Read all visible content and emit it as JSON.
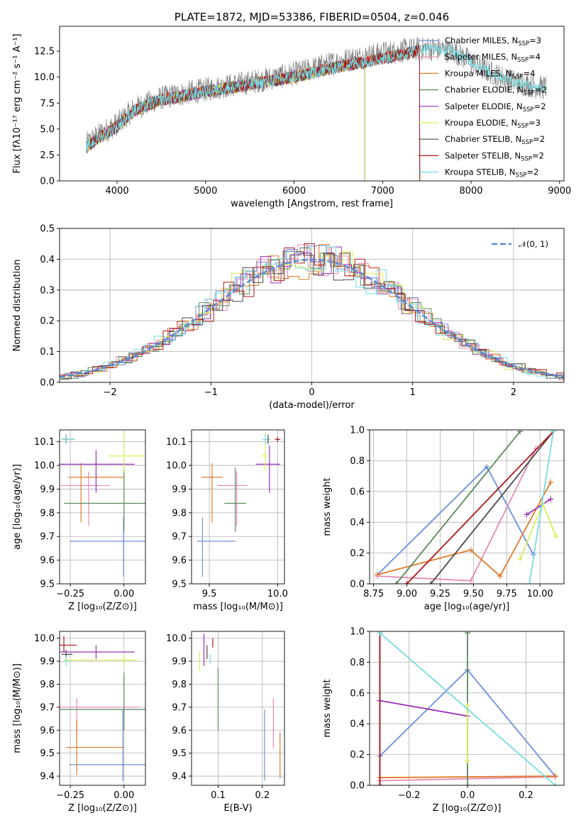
{
  "colors": {
    "Chabrier MILES": "#6b8fdc",
    "Salpeter MILES": "#e889b3",
    "Kroupa MILES": "#e07b2a",
    "Chabrier ELODIE": "#5a8a5a",
    "Salpeter ELODIE": "#9b30b8",
    "Kroupa ELODIE": "#d8ee55",
    "Chabrier STELIB": "#4a4a4a",
    "Salpeter STELIB": "#b01818",
    "Kroupa STELIB": "#76dbe0"
  },
  "chart_data": [
    {
      "id": "spectrum",
      "type": "line",
      "title": "PLATE=1872, MJD=53386, FIBERID=0504, z=0.046",
      "xlabel": "wavelength [Angstrom, rest frame]",
      "ylabel": "Flux [fλ10⁻¹⁷ erg cm⁻² s⁻¹ A⁻¹]",
      "xlim": [
        3350,
        9050
      ],
      "ylim": [
        0,
        14.9
      ],
      "xticks": [
        4000,
        5000,
        6000,
        7000,
        8000,
        9000
      ],
      "yticks": [
        0.0,
        2.5,
        5.0,
        7.5,
        10.0,
        12.5
      ],
      "grid": false,
      "legend_position": "right",
      "data_line_color": "#808080",
      "data_approx": [
        [
          3650,
          3.5
        ],
        [
          3800,
          4.5
        ],
        [
          4000,
          5.5
        ],
        [
          4200,
          7.0
        ],
        [
          4500,
          8.0
        ],
        [
          5000,
          8.8
        ],
        [
          5500,
          9.5
        ],
        [
          6000,
          10.3
        ],
        [
          6500,
          11.5
        ],
        [
          7000,
          12.3
        ],
        [
          7500,
          12.8
        ],
        [
          7800,
          12.5
        ],
        [
          8000,
          11.5
        ],
        [
          8200,
          10.5
        ],
        [
          8500,
          9.5
        ],
        [
          8800,
          9.0
        ]
      ],
      "model_approx": [
        [
          3650,
          3.2
        ],
        [
          3800,
          4.2
        ],
        [
          4000,
          5.2
        ],
        [
          4200,
          6.8
        ],
        [
          4500,
          7.8
        ],
        [
          5000,
          8.6
        ],
        [
          5500,
          9.3
        ],
        [
          6000,
          10.0
        ],
        [
          6500,
          11.0
        ],
        [
          7000,
          11.8
        ],
        [
          7400,
          12.5
        ]
      ],
      "legend": [
        {
          "label": "Chabrier MILES, N",
          "sub": "SSP",
          "val": "=3",
          "key": "Chabrier MILES"
        },
        {
          "label": "Salpeter MILES, N",
          "sub": "SSP",
          "val": "=4",
          "key": "Salpeter MILES"
        },
        {
          "label": "Kroupa MILES, N",
          "sub": "SSP",
          "val": "=4",
          "key": "Kroupa MILES"
        },
        {
          "label": "Chabrier ELODIE, N",
          "sub": "SSP",
          "val": "=2",
          "key": "Chabrier ELODIE"
        },
        {
          "label": "Salpeter ELODIE, N",
          "sub": "SSP",
          "val": "=2",
          "key": "Salpeter ELODIE"
        },
        {
          "label": "Kroupa ELODIE, N",
          "sub": "SSP",
          "val": "=3",
          "key": "Kroupa ELODIE"
        },
        {
          "label": "Chabrier STELIB, N",
          "sub": "SSP",
          "val": "=2",
          "key": "Chabrier STELIB"
        },
        {
          "label": "Salpeter STELIB, N",
          "sub": "SSP",
          "val": "=2",
          "key": "Salpeter STELIB"
        },
        {
          "label": "Kroupa STELIB, N",
          "sub": "SSP",
          "val": "=2",
          "key": "Kroupa STELIB"
        }
      ]
    },
    {
      "id": "residual-hist",
      "type": "line",
      "xlabel": "(data-model)/error",
      "ylabel": "Normed distribution",
      "xlim": [
        -2.5,
        2.5
      ],
      "ylim": [
        0,
        0.5
      ],
      "xticks": [
        -2,
        -1,
        0,
        1,
        2
      ],
      "yticks": [
        0.0,
        0.1,
        0.2,
        0.3,
        0.4,
        0.5
      ],
      "grid": true,
      "legend": "𝒩(0, 1)",
      "legend_position": "top-right",
      "normal_curve_color": "#5b8bd0"
    },
    {
      "id": "age-vs-z",
      "type": "scatter",
      "xlabel": "Z [log₁₀(Z/Z⊙)]",
      "ylabel": "age  [log₁₀(age/yr)]",
      "xlim": [
        -0.3,
        0.1
      ],
      "ylim": [
        9.5,
        10.15
      ],
      "xticks": [
        -0.25,
        0.0
      ],
      "yticks": [
        9.5,
        9.6,
        9.7,
        9.8,
        9.9,
        10.0,
        10.1
      ],
      "grid": true,
      "points": [
        {
          "key": "Chabrier MILES",
          "x": -0.002,
          "xerr": [
            0.25,
            0.14
          ],
          "y": 9.68,
          "yerr": [
            0.15,
            0.1
          ]
        },
        {
          "key": "Salpeter MILES",
          "x": -0.165,
          "xerr": [
            0.13,
            0.1
          ],
          "y": 9.915,
          "yerr": [
            0.17,
            0.06
          ]
        },
        {
          "key": "Kroupa MILES",
          "x": -0.2,
          "xerr": [
            0.06,
            0.2
          ],
          "y": 9.95,
          "yerr": [
            0.19,
            0.06
          ]
        },
        {
          "key": "Chabrier ELODIE",
          "x": 0.0,
          "xerr": [
            0.28,
            0.11
          ],
          "y": 9.84,
          "yerr": [
            0.12,
            0.15
          ]
        },
        {
          "key": "Salpeter ELODIE",
          "x": -0.13,
          "xerr": [
            0.18,
            0.18
          ],
          "y": 10.005,
          "yerr": [
            0.12,
            0.06
          ]
        },
        {
          "key": "Kroupa ELODIE",
          "x": 0.0,
          "xerr": [
            0.07,
            0.1
          ],
          "y": 10.04,
          "yerr": [
            0.07,
            0.1
          ]
        },
        {
          "key": "Chabrier STELIB",
          "x": -0.27,
          "xerr": [
            0.02,
            0.04
          ],
          "y": 10.11,
          "yerr": [
            0.02,
            0.02
          ]
        },
        {
          "key": "Salpeter STELIB",
          "x": -0.27,
          "xerr": [
            0.02,
            0.04
          ],
          "y": 10.11,
          "yerr": [
            0.02,
            0.02
          ]
        },
        {
          "key": "Kroupa STELIB",
          "x": -0.27,
          "xerr": [
            0.02,
            0.04
          ],
          "y": 10.11,
          "yerr": [
            0.02,
            0.02
          ]
        }
      ]
    },
    {
      "id": "age-vs-mass",
      "type": "scatter",
      "xlabel": "mass [log₁₀(M/M⊙)]",
      "ylabel": "",
      "xlim": [
        9.37,
        10.05
      ],
      "ylim": [
        9.5,
        10.15
      ],
      "xticks": [
        9.5,
        10.0
      ],
      "yticks": [
        9.5,
        9.6,
        9.7,
        9.8,
        9.9,
        10.0,
        10.1
      ],
      "grid": true,
      "points": [
        {
          "key": "Chabrier MILES",
          "x": 9.45,
          "xerr": [
            0.04,
            0.24
          ],
          "y": 9.68,
          "yerr": [
            0.15,
            0.1
          ]
        },
        {
          "key": "Salpeter MILES",
          "x": 9.7,
          "xerr": [
            0.14,
            0.08
          ],
          "y": 9.915,
          "yerr": [
            0.17,
            0.06
          ]
        },
        {
          "key": "Kroupa MILES",
          "x": 9.52,
          "xerr": [
            0.08,
            0.08
          ],
          "y": 9.95,
          "yerr": [
            0.19,
            0.06
          ]
        },
        {
          "key": "Chabrier ELODIE",
          "x": 9.69,
          "xerr": [
            0.08,
            0.08
          ],
          "y": 9.84,
          "yerr": [
            0.12,
            0.15
          ]
        },
        {
          "key": "Salpeter ELODIE",
          "x": 9.94,
          "xerr": [
            0.1,
            0.08
          ],
          "y": 10.005,
          "yerr": [
            0.12,
            0.08
          ]
        },
        {
          "key": "Kroupa ELODIE",
          "x": 9.91,
          "xerr": [
            0.03,
            0.02
          ],
          "y": 10.04,
          "yerr": [
            0.06,
            0.1
          ]
        },
        {
          "key": "Chabrier STELIB",
          "x": 9.93,
          "xerr": [
            0.01,
            0.01
          ],
          "y": 10.11,
          "yerr": [
            0.02,
            0.02
          ]
        },
        {
          "key": "Salpeter STELIB",
          "x": 10.0,
          "xerr": [
            0.02,
            0.02
          ],
          "y": 10.11,
          "yerr": [
            0.01,
            0.01
          ]
        },
        {
          "key": "Kroupa STELIB",
          "x": 9.91,
          "xerr": [
            0.02,
            0.02
          ],
          "y": 10.11,
          "yerr": [
            0.02,
            0.02
          ]
        }
      ]
    },
    {
      "id": "mass-weight-vs-age",
      "type": "line",
      "xlabel": "age  [log₁₀(age/yr)]",
      "ylabel": "mass weight",
      "xlim": [
        8.72,
        10.18
      ],
      "ylim": [
        0,
        1
      ],
      "xticks": [
        8.75,
        9.0,
        9.25,
        9.5,
        9.75,
        10.0
      ],
      "yticks": [
        0.0,
        0.2,
        0.4,
        0.6,
        0.8,
        1.0
      ],
      "grid": true,
      "series": [
        {
          "key": "Chabrier MILES",
          "x": [
            8.78,
            9.6,
            9.95
          ],
          "y": [
            0.06,
            0.76,
            0.19
          ]
        },
        {
          "key": "Salpeter MILES",
          "x": [
            8.78,
            9.48,
            9.97
          ],
          "y": [
            0.05,
            0.02,
            0.88
          ]
        },
        {
          "key": "Kroupa MILES",
          "x": [
            8.78,
            9.48,
            9.7,
            10.08
          ],
          "y": [
            0.06,
            0.22,
            0.05,
            0.66
          ]
        },
        {
          "key": "Chabrier ELODIE",
          "x": [
            8.92,
            9.85
          ],
          "y": [
            0.0,
            0.99
          ]
        },
        {
          "key": "Salpeter ELODIE",
          "x": [
            9.9,
            10.08
          ],
          "y": [
            0.45,
            0.55
          ]
        },
        {
          "key": "Kroupa ELODIE",
          "x": [
            9.85,
            10.02,
            10.12
          ],
          "y": [
            0.16,
            0.52,
            0.31
          ]
        },
        {
          "key": "Chabrier STELIB",
          "x": [
            9.18,
            10.1
          ],
          "y": [
            0.0,
            0.99
          ]
        },
        {
          "key": "Salpeter STELIB",
          "x": [
            9.0,
            10.1
          ],
          "y": [
            0.0,
            0.99
          ]
        },
        {
          "key": "Kroupa STELIB",
          "x": [
            9.92,
            10.1
          ],
          "y": [
            0.0,
            0.99
          ]
        }
      ]
    },
    {
      "id": "mass-vs-z",
      "type": "scatter",
      "xlabel": "Z [log₁₀(Z/Z⊙)]",
      "ylabel": "mass [log₁₀(M/M⊙)]",
      "xlim": [
        -0.3,
        0.1
      ],
      "ylim": [
        9.36,
        10.03
      ],
      "xticks": [
        -0.25,
        0.0
      ],
      "yticks": [
        9.4,
        9.5,
        9.6,
        9.7,
        9.8,
        9.9,
        10.0
      ],
      "grid": true,
      "points": [
        {
          "key": "Chabrier MILES",
          "x": -0.005,
          "xerr": [
            0.25,
            0.15
          ],
          "y": 9.45,
          "yerr": [
            0.07,
            0.24
          ]
        },
        {
          "key": "Salpeter MILES",
          "x": -0.22,
          "xerr": [
            0.09,
            0.29
          ],
          "y": 9.7,
          "yerr": [
            0.14,
            0.04
          ]
        },
        {
          "key": "Kroupa MILES",
          "x": -0.22,
          "xerr": [
            0.05,
            0.22
          ],
          "y": 9.525,
          "yerr": [
            0.12,
            0.12
          ]
        },
        {
          "key": "Chabrier ELODIE",
          "x": 0.0,
          "xerr": [
            0.3,
            0.1
          ],
          "y": 9.69,
          "yerr": [
            0.09,
            0.16
          ]
        },
        {
          "key": "Salpeter ELODIE",
          "x": -0.13,
          "xerr": [
            0.18,
            0.18
          ],
          "y": 9.94,
          "yerr": [
            0.03,
            0.03
          ]
        },
        {
          "key": "Kroupa ELODIE",
          "x": 0.0,
          "xerr": [
            0.28,
            0.06
          ],
          "y": 9.905,
          "yerr": [
            0.03,
            0.03
          ]
        },
        {
          "key": "Chabrier STELIB",
          "x": -0.27,
          "xerr": [
            0.02,
            0.03
          ],
          "y": 9.93,
          "yerr": [
            0.02,
            0.02
          ]
        },
        {
          "key": "Salpeter STELIB",
          "x": -0.28,
          "xerr": [
            0.02,
            0.06
          ],
          "y": 9.97,
          "yerr": [
            0.03,
            0.04
          ]
        },
        {
          "key": "Kroupa STELIB",
          "x": -0.27,
          "xerr": [
            0.01,
            0.02
          ],
          "y": 9.9,
          "yerr": [
            0.02,
            0.02
          ]
        }
      ]
    },
    {
      "id": "mass-vs-ebv",
      "type": "scatter",
      "xlabel": "E(B-V)",
      "ylabel": "",
      "xlim": [
        0.04,
        0.25
      ],
      "ylim": [
        9.36,
        10.03
      ],
      "xticks": [
        0.1,
        0.2
      ],
      "yticks": [
        9.4,
        9.5,
        9.6,
        9.7,
        9.8,
        9.9,
        10.0
      ],
      "grid": true,
      "points": [
        {
          "key": "Chabrier MILES",
          "x": 0.205,
          "y": 9.5,
          "yerr": [
            0.12,
            0.19
          ]
        },
        {
          "key": "Salpeter MILES",
          "x": 0.225,
          "y": 9.62,
          "yerr": [
            0.1,
            0.12
          ]
        },
        {
          "key": "Kroupa MILES",
          "x": 0.24,
          "y": 9.49,
          "yerr": [
            0.1,
            0.1
          ]
        },
        {
          "key": "Chabrier ELODIE",
          "x": 0.1,
          "y": 9.7,
          "yerr": [
            0.1,
            0.17
          ]
        },
        {
          "key": "Salpeter ELODIE",
          "x": 0.068,
          "y": 9.94,
          "yerr": [
            0.06,
            0.08
          ]
        },
        {
          "key": "Kroupa ELODIE",
          "x": 0.058,
          "y": 9.9,
          "yerr": [
            0.04,
            0.04
          ]
        },
        {
          "key": "Chabrier STELIB",
          "x": 0.075,
          "y": 9.94,
          "yerr": [
            0.03,
            0.03
          ]
        },
        {
          "key": "Salpeter STELIB",
          "x": 0.088,
          "y": 9.98,
          "yerr": [
            0.02,
            0.02
          ]
        },
        {
          "key": "Kroupa STELIB",
          "x": 0.082,
          "y": 9.91,
          "yerr": [
            0.02,
            0.02
          ]
        }
      ]
    },
    {
      "id": "mass-weight-vs-z",
      "type": "line",
      "xlabel": "Z [log₁₀(Z/Z⊙)]",
      "ylabel": "mass weight",
      "xlim": [
        -0.335,
        0.33
      ],
      "ylim": [
        0,
        1
      ],
      "xticks": [
        -0.2,
        0.0,
        0.2
      ],
      "yticks": [
        0.0,
        0.2,
        0.4,
        0.6,
        0.8,
        1.0
      ],
      "grid": true,
      "series": [
        {
          "key": "Chabrier MILES",
          "x": [
            -0.3,
            0.0,
            0.3
          ],
          "y": [
            0.19,
            0.75,
            0.06
          ]
        },
        {
          "key": "Salpeter MILES",
          "x": [
            -0.3,
            0.3
          ],
          "y": [
            0.03,
            0.055
          ]
        },
        {
          "key": "Kroupa MILES",
          "x": [
            -0.3,
            0.3
          ],
          "y": [
            0.05,
            0.06
          ]
        },
        {
          "key": "Chabrier ELODIE",
          "x": [
            0.0,
            0.0
          ],
          "y": [
            0.0,
            0.99
          ]
        },
        {
          "key": "Salpeter ELODIE",
          "x": [
            -0.3,
            0.0
          ],
          "y": [
            0.55,
            0.45
          ]
        },
        {
          "key": "Kroupa ELODIE",
          "x": [
            0.0,
            0.0
          ],
          "y": [
            0.16,
            0.52
          ]
        },
        {
          "key": "Chabrier STELIB",
          "x": [
            -0.3,
            -0.3
          ],
          "y": [
            0.0,
            0.99
          ]
        },
        {
          "key": "Salpeter STELIB",
          "x": [
            -0.3,
            -0.3
          ],
          "y": [
            0.0,
            0.99
          ]
        },
        {
          "key": "Kroupa STELIB",
          "x": [
            -0.3,
            0.3
          ],
          "y": [
            0.99,
            0.0
          ]
        }
      ]
    }
  ]
}
